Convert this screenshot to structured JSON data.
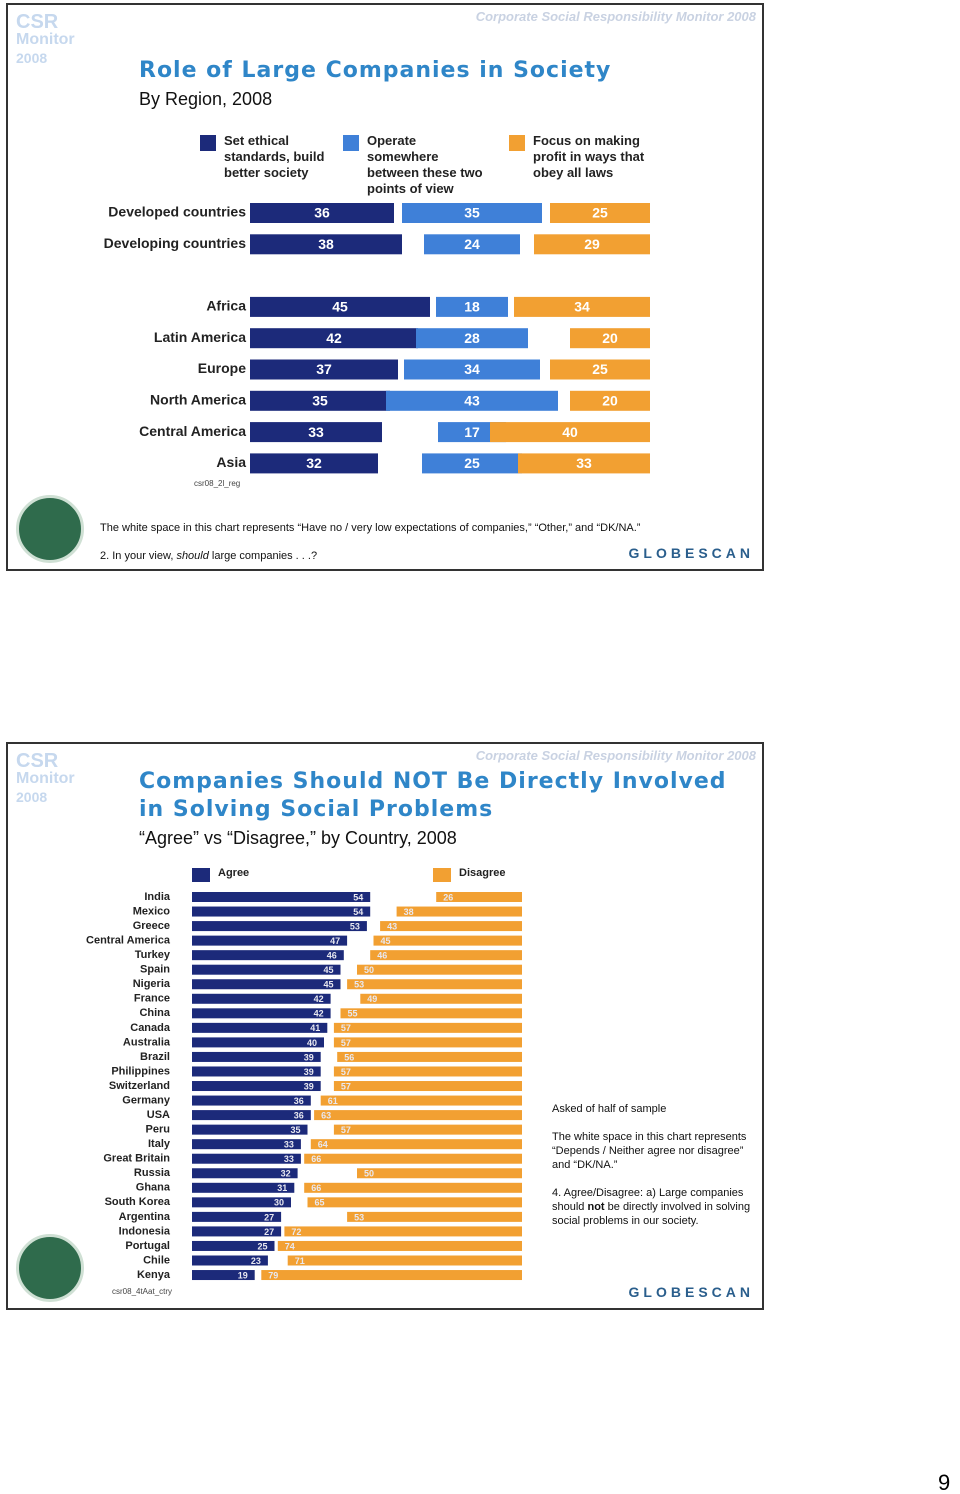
{
  "page_number": "9",
  "slides": [
    {
      "header": "Corporate Social Responsibility Monitor 2008",
      "logo": [
        "CSR",
        "Monitor",
        "2008"
      ],
      "note": "The white space in this chart represents “Have no / very low expectations of companies,” “Other,” and “DK/NA.”",
      "question": [
        "2. In your view, ",
        "should",
        " large companies . . .?"
      ],
      "brand": "GLOBESCAN"
    },
    {
      "header": "Corporate Social Responsibility Monitor 2008",
      "logo": [
        "CSR",
        "Monitor",
        "2008"
      ],
      "notes": [
        "Asked of half of sample",
        "The white space in this chart represents “Depends / Neither agree nor disagree” and “DK/NA.”"
      ],
      "question": [
        "4. Agree/Disagree: a) Large companies should ",
        "not",
        " be directly involved in solving social problems in our society."
      ],
      "brand": "GLOBESCAN"
    }
  ],
  "chart_data": [
    {
      "type": "bar",
      "orientation": "horizontal",
      "title": "Role of Large Companies in Society",
      "subtitle": "By Region, 2008",
      "source_code": "csr08_2l_reg",
      "categories": [
        "Developed countries",
        "Developing countries",
        null,
        "Africa",
        "Latin America",
        "Europe",
        "North America",
        "Central America",
        "Asia"
      ],
      "series": [
        {
          "name": "Set ethical standards, build better society",
          "color": "#1c2a7a",
          "values": [
            36,
            38,
            null,
            45,
            42,
            37,
            35,
            33,
            32
          ]
        },
        {
          "name": "Operate somewhere between these two points of view",
          "color": "#3f80d8",
          "values": [
            35,
            24,
            null,
            18,
            28,
            34,
            43,
            17,
            25
          ]
        },
        {
          "name": "Focus on making profit in ways that obey all laws",
          "color": "#f2a032",
          "values": [
            25,
            29,
            null,
            34,
            20,
            25,
            20,
            40,
            33
          ]
        }
      ]
    },
    {
      "type": "bar",
      "orientation": "horizontal",
      "title": "Companies Should NOT Be Directly Involved in Solving Social Problems",
      "subtitle": "“Agree” vs “Disagree,” by Country, 2008",
      "source_code": "csr08_4tAat_ctry",
      "categories": [
        "India",
        "Mexico",
        "Greece",
        "Central America",
        "Turkey",
        "Spain",
        "Nigeria",
        "France",
        "China",
        "Canada",
        "Australia",
        "Brazil",
        "Philippines",
        "Switzerland",
        "Germany",
        "USA",
        "Peru",
        "Italy",
        "Great Britain",
        "Russia",
        "Ghana",
        "South Korea",
        "Argentina",
        "Indonesia",
        "Portugal",
        "Chile",
        "Kenya"
      ],
      "series": [
        {
          "name": "Agree",
          "color": "#1c2a7a",
          "values": [
            54,
            54,
            53,
            47,
            46,
            45,
            45,
            42,
            42,
            41,
            40,
            39,
            39,
            39,
            36,
            36,
            35,
            33,
            33,
            32,
            31,
            30,
            27,
            27,
            25,
            23,
            19
          ]
        },
        {
          "name": "Disagree",
          "color": "#f2a032",
          "values": [
            26,
            38,
            43,
            45,
            46,
            50,
            53,
            49,
            55,
            57,
            57,
            56,
            57,
            57,
            61,
            63,
            57,
            64,
            66,
            50,
            66,
            65,
            53,
            72,
            74,
            71,
            79
          ]
        }
      ]
    }
  ]
}
